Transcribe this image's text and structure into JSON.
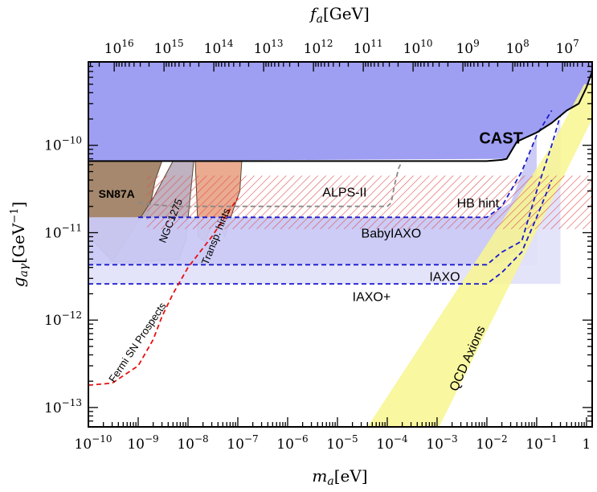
{
  "chart_data": {
    "type": "area",
    "xlabel": "m_a[eV]",
    "x2label": "f_a[GeV]",
    "ylabel": "g_aγ[GeV^-1]",
    "xscale": "log",
    "yscale": "log",
    "xlim": [
      1e-10,
      1.3
    ],
    "ylim": [
      6e-14,
      9e-10
    ],
    "x_ticks": [
      {
        "base": "10",
        "exp": "−10",
        "value": 1e-10
      },
      {
        "base": "10",
        "exp": "−9",
        "value": 1e-09
      },
      {
        "base": "10",
        "exp": "−8",
        "value": 1e-08
      },
      {
        "base": "10",
        "exp": "−7",
        "value": 1e-07
      },
      {
        "base": "10",
        "exp": "−6",
        "value": 1e-06
      },
      {
        "base": "10",
        "exp": "−5",
        "value": 1e-05
      },
      {
        "base": "10",
        "exp": "−4",
        "value": 0.0001
      },
      {
        "base": "10",
        "exp": "−3",
        "value": 0.001
      },
      {
        "base": "10",
        "exp": "−2",
        "value": 0.01
      },
      {
        "base": "10",
        "exp": "−1",
        "value": 0.1
      },
      {
        "base": "1",
        "exp": "",
        "value": 1
      }
    ],
    "x2_ticks": [
      {
        "base": "10",
        "exp": "16",
        "value": 3.3e-10
      },
      {
        "base": "10",
        "exp": "15",
        "value": 3.3e-09
      },
      {
        "base": "10",
        "exp": "14",
        "value": 3.3e-08
      },
      {
        "base": "10",
        "exp": "13",
        "value": 3.3e-07
      },
      {
        "base": "10",
        "exp": "12",
        "value": 3.3e-06
      },
      {
        "base": "10",
        "exp": "11",
        "value": 3.3e-05
      },
      {
        "base": "10",
        "exp": "10",
        "value": 0.00033
      },
      {
        "base": "10",
        "exp": "9",
        "value": 0.0033
      },
      {
        "base": "10",
        "exp": "8",
        "value": 0.033
      },
      {
        "base": "10",
        "exp": "7",
        "value": 0.33
      }
    ],
    "y_ticks": [
      {
        "base": "10",
        "exp": "−10",
        "value": 1e-10
      },
      {
        "base": "10",
        "exp": "−11",
        "value": 1e-11
      },
      {
        "base": "10",
        "exp": "−12",
        "value": 1e-12
      },
      {
        "base": "10",
        "exp": "−13",
        "value": 1e-13
      }
    ],
    "regions": [
      {
        "name": "CAST",
        "color": "#9999f2",
        "points": [
          [
            1e-10,
            9e-10
          ],
          [
            1.3,
            9e-10
          ],
          [
            1.3,
            7e-10
          ],
          [
            1,
            4.6e-10
          ],
          [
            0.7,
            3e-10
          ],
          [
            0.4,
            2.5e-10
          ],
          [
            0.2,
            1.8e-10
          ],
          [
            0.1,
            1.4e-10
          ],
          [
            0.04,
            1.1e-10
          ],
          [
            0.025,
            7e-11
          ],
          [
            1e-10,
            6.6e-11
          ]
        ]
      },
      {
        "name": "SN87A",
        "color": "#a08265",
        "points": [
          [
            1e-10,
            6.6e-11
          ],
          [
            3e-09,
            6.6e-11
          ],
          [
            2.2e-09,
            4e-11
          ],
          [
            1.6e-09,
            1.6e-11
          ],
          [
            1.1e-09,
            8e-12
          ],
          [
            8e-10,
            5e-12
          ],
          [
            3e-10,
            4.7e-12
          ],
          [
            2e-10,
            6e-12
          ],
          [
            1e-10,
            9e-12
          ]
        ]
      },
      {
        "name": "NGC1275",
        "color": "#bcaebe",
        "points": [
          [
            3e-10,
            4.7e-12
          ],
          [
            2e-09,
            2.5e-11
          ],
          [
            5e-09,
            6.6e-11
          ],
          [
            1.3e-08,
            6.6e-11
          ],
          [
            1.1e-08,
            2.5e-11
          ],
          [
            9e-09,
            8e-12
          ],
          [
            6.5e-09,
            5e-12
          ],
          [
            8e-10,
            4.6e-12
          ]
        ]
      },
      {
        "name": "Transp. hints",
        "color": "#e9a68a",
        "points": [
          [
            1.4e-08,
            6.6e-11
          ],
          [
            1.2e-07,
            6.6e-11
          ],
          [
            1.1e-07,
            3e-11
          ],
          [
            8e-08,
            1.8e-11
          ],
          [
            5.5e-08,
            9e-12
          ],
          [
            4e-08,
            1.4e-11
          ],
          [
            3e-08,
            1.2e-11
          ],
          [
            2.2e-08,
            8e-12
          ],
          [
            1.6e-08,
            9e-12
          ],
          [
            1.5e-08,
            2.5e-11
          ]
        ]
      },
      {
        "name": "BabyIAXO",
        "color": "#c9c9f5",
        "points": [
          [
            1e-10,
            1.5e-11
          ],
          [
            0.01,
            1.5e-11
          ],
          [
            0.03,
            2.2e-11
          ],
          [
            0.1,
            1.3e-10
          ],
          [
            0.1,
            4.3e-12
          ],
          [
            0.02,
            4.3e-12
          ],
          [
            1e-10,
            4.3e-12
          ]
        ]
      },
      {
        "name": "IAXO",
        "color": "#e2e2fa",
        "points": [
          [
            1e-10,
            4.3e-12
          ],
          [
            0.015,
            4.3e-12
          ],
          [
            0.04,
            6e-12
          ],
          [
            0.1,
            2e-11
          ],
          [
            0.3,
            2e-10
          ],
          [
            0.3,
            2.6e-12
          ],
          [
            1e-10,
            2.6e-12
          ]
        ]
      },
      {
        "name": "QCD Axions",
        "color": "#f8f68e",
        "points": [
          [
            4e-05,
            6e-14
          ],
          [
            0.0011,
            6e-14
          ],
          [
            1.3,
            2e-10
          ],
          [
            1.3,
            5e-10
          ],
          [
            0.9,
            5e-10
          ],
          [
            0.2,
            1e-10
          ]
        ]
      }
    ],
    "hatched": [
      {
        "name": "HB hint",
        "color": "#e05050",
        "ymin": 1.1e-11,
        "ymax": 4.5e-11,
        "xmin": 1.5e-09,
        "xmax": 1.3
      }
    ],
    "series": [
      {
        "name": "ALPS-II",
        "color": "#888888",
        "style": "dashed",
        "x": [
          1e-09,
          2e-09,
          5e-09,
          1e-08,
          1e-06,
          1e-05,
          5e-05,
          0.0001,
          0.00012,
          0.00014,
          0.00017,
          0.0002
        ],
        "y": [
          2.2e-11,
          2.1e-11,
          2e-11,
          2e-11,
          2e-11,
          2e-11,
          2e-11,
          2e-11,
          2.2e-11,
          3.5e-11,
          5.5e-11,
          6.6e-11
        ]
      },
      {
        "name": "BabyIAXO",
        "color": "#1a1acc",
        "style": "dashed",
        "x": [
          1e-09,
          0.001,
          0.01,
          0.02,
          0.05,
          0.1,
          0.2
        ],
        "y": [
          1.5e-11,
          1.5e-11,
          1.5e-11,
          2e-11,
          5e-11,
          1.3e-10,
          2.5e-10
        ]
      },
      {
        "name": "IAXO",
        "color": "#1a1acc",
        "style": "dashed",
        "x": [
          1e-10,
          0.001,
          0.01,
          0.02,
          0.05,
          0.1,
          0.2,
          0.3
        ],
        "y": [
          4.3e-12,
          4.3e-12,
          4.3e-12,
          6e-12,
          8e-12,
          3e-11,
          1e-10,
          2.2e-10
        ]
      },
      {
        "name": "IAXO+",
        "color": "#1a1acc",
        "style": "dashed",
        "x": [
          1e-10,
          0.001,
          0.01,
          0.02,
          0.05,
          0.1,
          0.2
        ],
        "y": [
          2.6e-12,
          2.6e-12,
          2.6e-12,
          3.5e-12,
          6e-12,
          1.5e-11,
          4e-11
        ]
      },
      {
        "name": "Fermi SN Prospects",
        "color": "#e81010",
        "style": "dashed",
        "x": [
          1e-10,
          3e-10,
          1e-09,
          2e-09,
          3e-09,
          5e-09,
          1e-08,
          3e-08,
          1e-07
        ],
        "y": [
          1.8e-13,
          1.9e-13,
          3e-13,
          6e-13,
          1.1e-12,
          2e-12,
          4e-12,
          9e-12,
          2.5e-11
        ]
      },
      {
        "name": "CAST",
        "color": "#000000",
        "style": "solid",
        "x": [
          1e-10,
          1e-05,
          0.001,
          0.01,
          0.02,
          0.025,
          0.04,
          0.1,
          0.2,
          0.4,
          0.7,
          1,
          1.3
        ],
        "y": [
          6.6e-11,
          6.6e-11,
          6.6e-11,
          6.6e-11,
          6.8e-11,
          7e-11,
          1.1e-10,
          1.4e-10,
          1.8e-10,
          2.5e-10,
          3e-10,
          4.6e-10,
          7e-10
        ]
      }
    ],
    "labels": [
      {
        "text": "CAST",
        "x": 0.007,
        "y": 1.05e-10,
        "color": "#000000",
        "size": 20,
        "weight": "bold",
        "rotate": 0
      },
      {
        "text": "SN87A",
        "x": 1.6e-10,
        "y": 2.5e-11,
        "color": "#000000",
        "size": 14,
        "weight": "bold",
        "rotate": 0
      },
      {
        "text": "NGC1275",
        "x": 3.5e-09,
        "y": 7.5e-12,
        "color": "#000000",
        "size": 13,
        "weight": "normal",
        "rotate": -68
      },
      {
        "text": "Transp. hints",
        "x": 2.5e-08,
        "y": 4.2e-12,
        "color": "#000000",
        "size": 13,
        "weight": "normal",
        "rotate": -68
      },
      {
        "text": "ALPS-II",
        "x": 5e-06,
        "y": 2.6e-11,
        "color": "#000000",
        "size": 16,
        "weight": "normal",
        "rotate": 0
      },
      {
        "text": "HB hint",
        "x": 0.0025,
        "y": 1.95e-11,
        "color": "#e03030",
        "size": 16,
        "weight": "normal",
        "rotate": 0
      },
      {
        "text": "BabyIAXO",
        "x": 3e-05,
        "y": 8.8e-12,
        "color": "#000000",
        "size": 16,
        "weight": "normal",
        "rotate": 0
      },
      {
        "text": "IAXO",
        "x": 0.0007,
        "y": 2.8e-12,
        "color": "#000000",
        "size": 16,
        "weight": "normal",
        "rotate": 0
      },
      {
        "text": "IAXO+",
        "x": 2e-05,
        "y": 1.65e-12,
        "color": "#000000",
        "size": 16,
        "weight": "normal",
        "rotate": 0
      },
      {
        "text": "Fermi SN Prospects",
        "x": 3.3e-10,
        "y": 1.9e-13,
        "color": "#000000",
        "size": 13,
        "weight": "normal",
        "rotate": -56
      },
      {
        "text": "QCD Axions",
        "x": 0.0025,
        "y": 1.5e-13,
        "color": "#000000",
        "size": 16,
        "weight": "normal",
        "rotate": -66
      }
    ]
  }
}
